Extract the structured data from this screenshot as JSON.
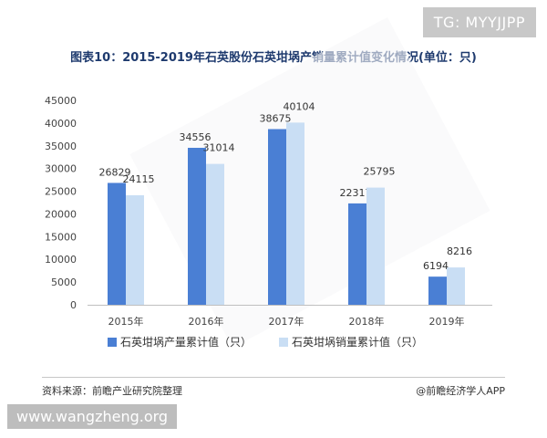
{
  "badge": "TG: MYYJJPP",
  "footer": {
    "source": "资料来源：前瞻产业研究院整理",
    "brand": "@前瞻经济学人APP"
  },
  "site_badge": "www.wangzheng.org",
  "colors": {
    "series_dark": "#4a7fd4",
    "series_light": "#c9def4",
    "title": "#1e3a6e"
  },
  "chart_data": {
    "type": "bar",
    "title": "图表10：2015-2019年石英股份石英坩埚产销量累计值变化情况(单位：只)",
    "categories": [
      "2015年",
      "2016年",
      "2017年",
      "2018年",
      "2019年"
    ],
    "series": [
      {
        "name": "石英坩埚产量累计值（只）",
        "values": [
          26829,
          34556,
          38675,
          22317,
          6194
        ]
      },
      {
        "name": "石英坩埚销量累计值（只）",
        "values": [
          24115,
          31014,
          40104,
          25795,
          8216
        ]
      }
    ],
    "yticks": [
      "45000",
      "40000",
      "35000",
      "30000",
      "25000",
      "20000",
      "15000",
      "10000",
      "5000",
      "0"
    ],
    "ylim": [
      0,
      45000
    ],
    "grid": false,
    "legend": "bottom"
  }
}
